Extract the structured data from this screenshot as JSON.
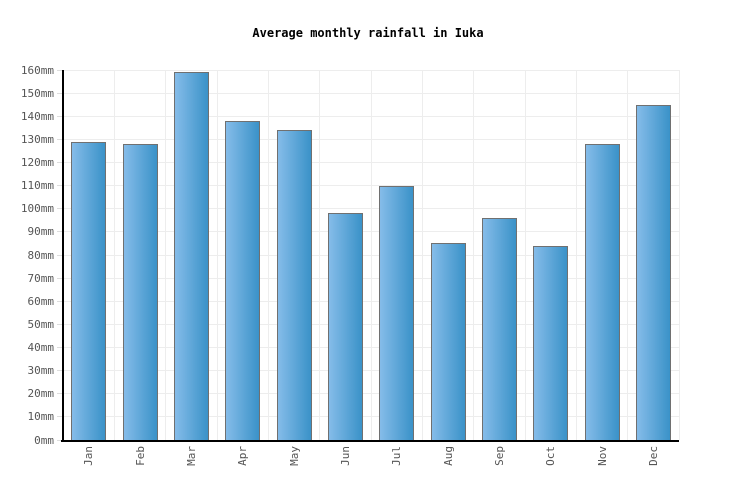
{
  "chart_data": {
    "type": "bar",
    "title": "Average monthly rainfall in Iuka",
    "categories": [
      "Jan",
      "Feb",
      "Mar",
      "Apr",
      "May",
      "Jun",
      "Jul",
      "Aug",
      "Sep",
      "Oct",
      "Nov",
      "Dec"
    ],
    "values": [
      129,
      128,
      159,
      138,
      134,
      98,
      110,
      85,
      96,
      84,
      128,
      145
    ],
    "unit": "mm",
    "xlabel": "",
    "ylabel": "",
    "ylim": [
      0,
      160
    ],
    "ytick_step": 10,
    "ytick_labels": [
      "0mm",
      "10mm",
      "20mm",
      "30mm",
      "40mm",
      "50mm",
      "60mm",
      "70mm",
      "80mm",
      "90mm",
      "100mm",
      "110mm",
      "120mm",
      "130mm",
      "140mm",
      "150mm",
      "160mm"
    ],
    "grid": true,
    "legend": false,
    "colors": {
      "bar_gradient_left": "#85bce9",
      "bar_gradient_right": "#3a92c8",
      "bar_border": "#707070",
      "gridline": "#ededed",
      "tick": "#dddddd",
      "axis": "#000000",
      "axis_label": "#555555",
      "title": "#000000",
      "background": "#ffffff"
    }
  }
}
